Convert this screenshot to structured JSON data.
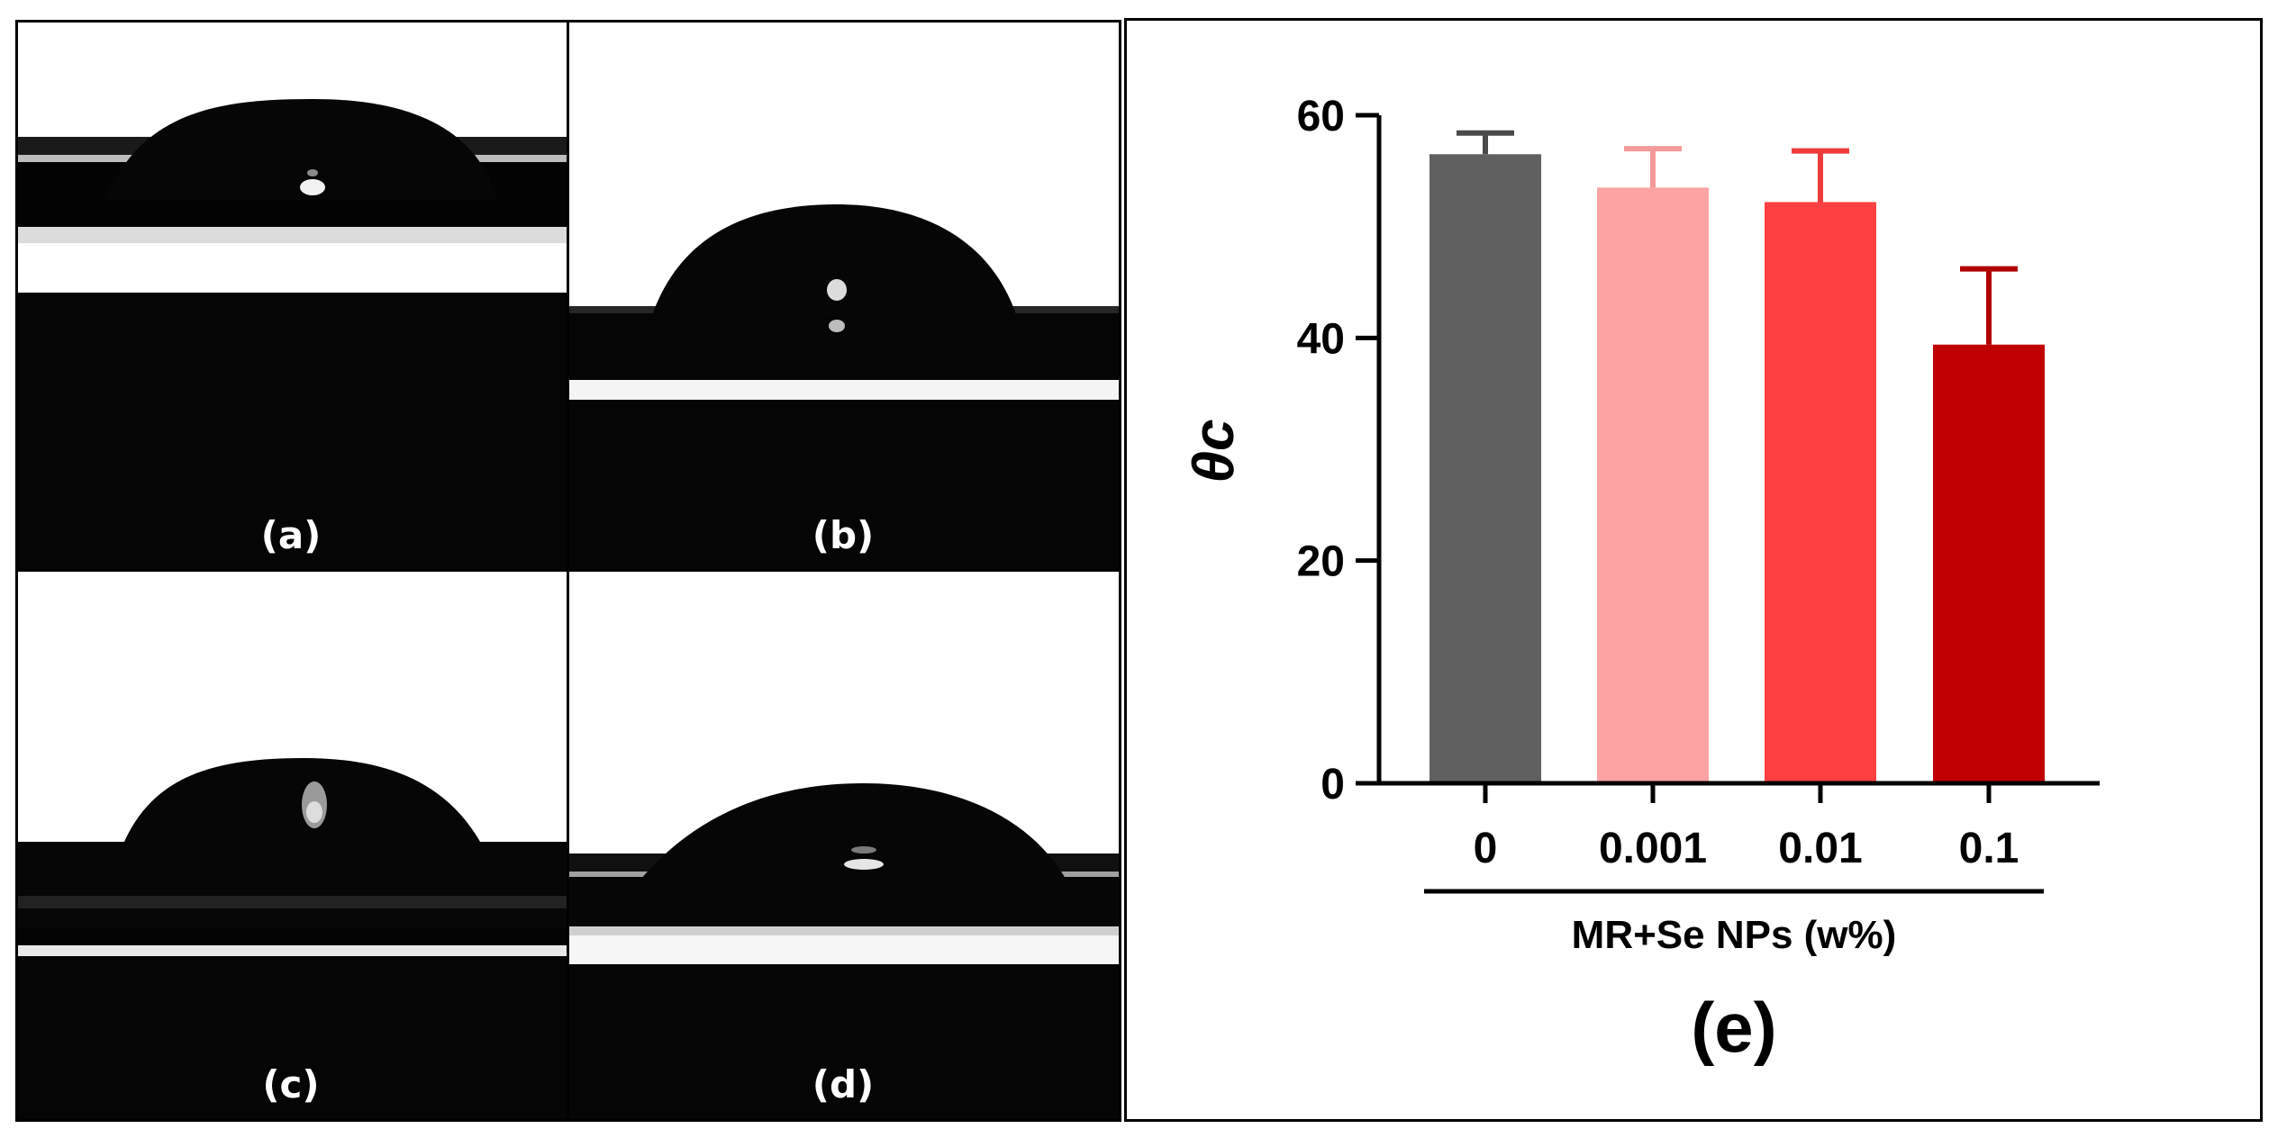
{
  "photos": [
    {
      "id": "a",
      "label": "(a)"
    },
    {
      "id": "b",
      "label": "(b)"
    },
    {
      "id": "c",
      "label": "(c)"
    },
    {
      "id": "d",
      "label": "(d)"
    }
  ],
  "colors": {
    "bar_0": "#606060",
    "bar_0.001": "#fda3a3",
    "bar_0.01": "#ff4040",
    "bar_0.1": "#c00000",
    "err_0": "#4a4a4a",
    "err_0.001": "#f59a9a",
    "err_0.01": "#ee3b3b",
    "err_0.1": "#b00000"
  },
  "chart_data": {
    "type": "bar",
    "categories": [
      "0",
      "0.001",
      "0.01",
      "0.1"
    ],
    "values": [
      56.5,
      53.5,
      52.2,
      39.4
    ],
    "errors": [
      1.9,
      3.5,
      4.6,
      6.8
    ],
    "ylabel": "θc",
    "xlabel": "MR+Se NPs (w%)",
    "yticks": [
      "0",
      "20",
      "40",
      "60"
    ],
    "ylim": [
      0,
      60
    ],
    "panel_label": "(e)",
    "grid": false,
    "legend": "none"
  }
}
